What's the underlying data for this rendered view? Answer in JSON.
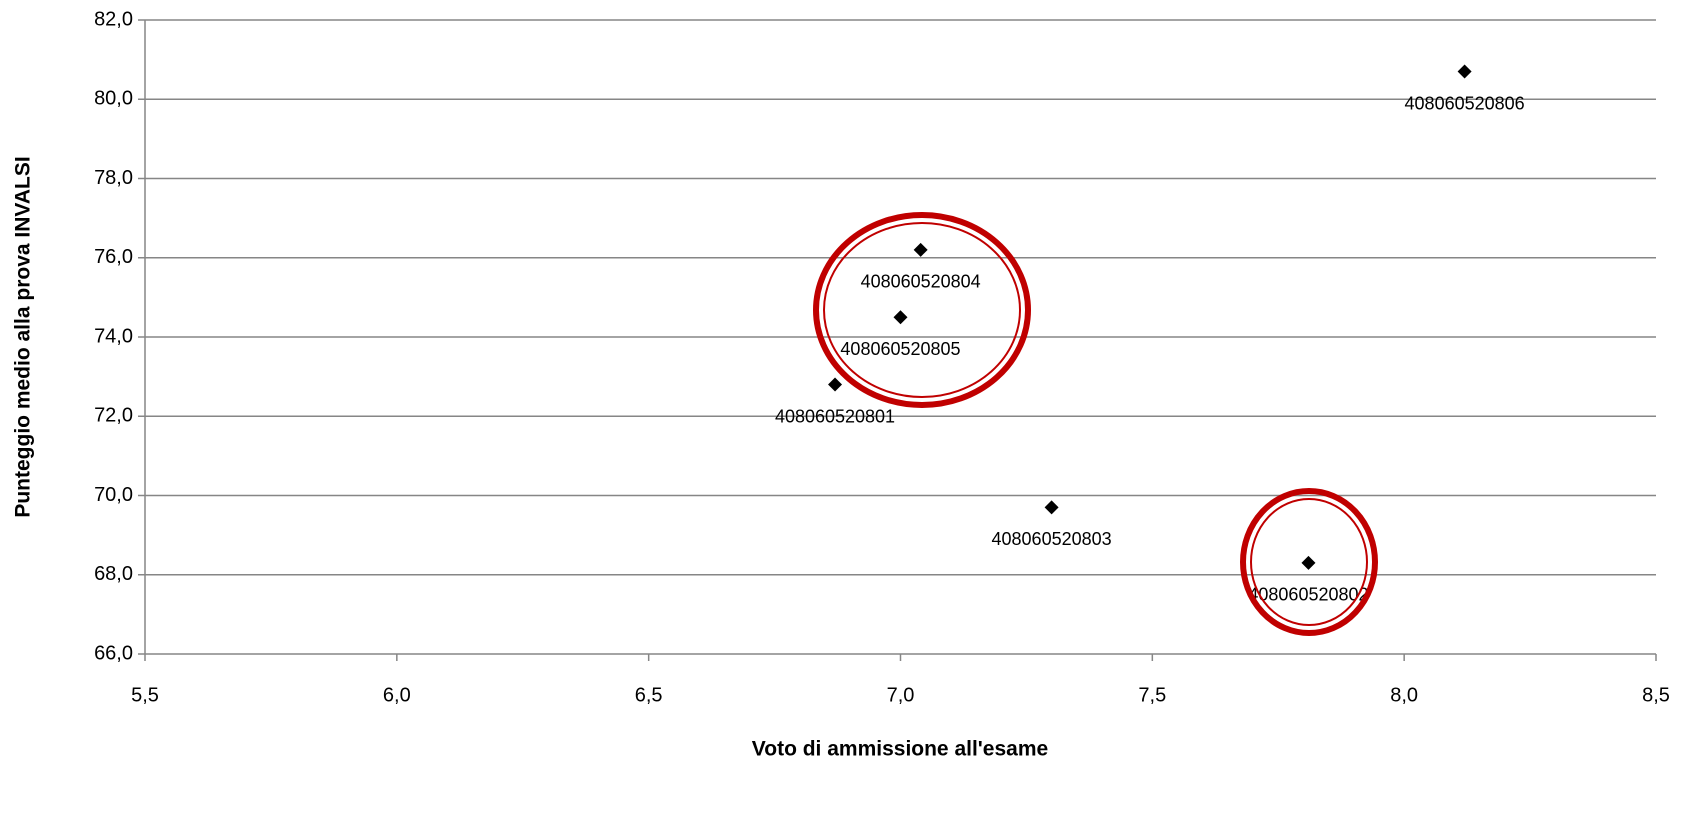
{
  "chart_data": {
    "type": "scatter",
    "x_label": "Voto di ammissione all'esame",
    "y_label": "Punteggio medio alla prova INVALSI",
    "x": [
      8.12,
      7.04,
      7.0,
      6.87,
      7.3,
      7.81
    ],
    "values": [
      80.7,
      76.2,
      74.5,
      72.8,
      69.7,
      68.3
    ],
    "labels": [
      "408060520806",
      "408060520804",
      "408060520805",
      "408060520801",
      "408060520803",
      "408060520802"
    ],
    "color": "#000000",
    "xlim": [
      5.5,
      8.5
    ],
    "xticks": [
      {
        "value": 5.5,
        "label": "5,5"
      },
      {
        "value": 6,
        "label": "6,0"
      },
      {
        "value": 6.5,
        "label": "6,5"
      },
      {
        "value": 7,
        "label": "7,0"
      },
      {
        "value": 7.5,
        "label": "7,5"
      },
      {
        "value": 8,
        "label": "8,0"
      },
      {
        "value": 8.5,
        "label": "8,5"
      }
    ],
    "ylim": [
      66,
      82
    ],
    "yticks": [
      {
        "value": 66,
        "label": "66,0"
      },
      {
        "value": 68,
        "label": "68,0"
      },
      {
        "value": 70,
        "label": "70,0"
      },
      {
        "value": 72,
        "label": "72,0"
      },
      {
        "value": 74,
        "label": "74,0"
      },
      {
        "value": 76,
        "label": "76,0"
      },
      {
        "value": 78,
        "label": "78,0"
      },
      {
        "value": 80,
        "label": "80,0"
      },
      {
        "value": 82,
        "label": "82,0"
      }
    ],
    "grid": true
  }
}
